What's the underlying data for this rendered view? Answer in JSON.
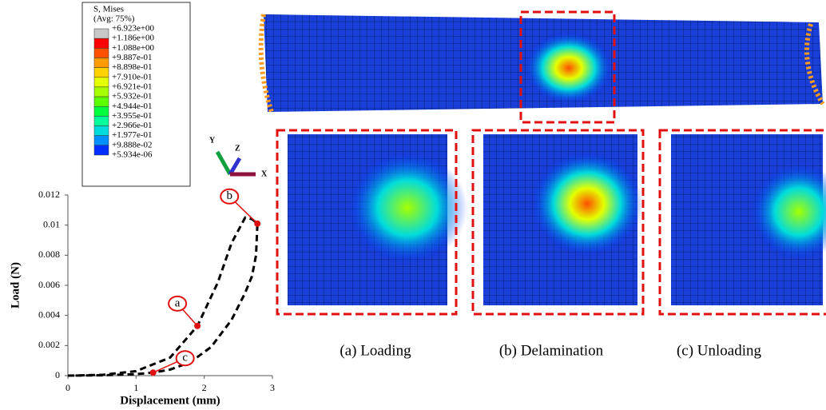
{
  "legend": {
    "title": "S, Mises",
    "subtitle": "(Avg: 75%)",
    "labels": [
      "+6.923e+00",
      "+1.186e+00",
      "+1.088e+00",
      "+9.887e-01",
      "+8.898e-01",
      "+7.910e-01",
      "+6.921e-01",
      "+5.932e-01",
      "+4.944e-01",
      "+3.955e-01",
      "+2.966e-01",
      "+1.977e-01",
      "+9.888e-02",
      "+5.934e-06"
    ],
    "colors": [
      "#c8c8c8",
      "#ff0000",
      "#ff5000",
      "#ff9a00",
      "#ffd200",
      "#e4ff00",
      "#a6ff00",
      "#5cff00",
      "#00ff3c",
      "#00ff9a",
      "#00dcdc",
      "#0090ff",
      "#0030ff"
    ]
  },
  "triad": {
    "y": "Y",
    "z": "Z",
    "x": "X"
  },
  "captions": [
    "(a) Loading",
    "(b) Delamination",
    "(c) Unloading"
  ],
  "chart_data": {
    "type": "line",
    "x_label": "Displacement (mm)",
    "y_label": "Load (N)",
    "xlim": [
      0,
      3
    ],
    "xticks": [
      0,
      1,
      2,
      3
    ],
    "ylim": [
      0,
      0.012
    ],
    "yticks": [
      0,
      0.002,
      0.004,
      0.006,
      0.008,
      0.01,
      0.012
    ],
    "series": [
      {
        "color": "#000000",
        "x": [
          0,
          0.5,
          1,
          1.5,
          1.9,
          2.2,
          2.4,
          2.6,
          2.7,
          2.78,
          2.76,
          2.7,
          2.6,
          2.4,
          2.1,
          1.8,
          1.5,
          1.25,
          1,
          0.5,
          0
        ],
        "values": [
          0,
          5e-05,
          0.0003,
          0.0012,
          0.0033,
          0.0062,
          0.0088,
          0.0105,
          0.0104,
          0.0101,
          0.008,
          0.0066,
          0.0055,
          0.0037,
          0.0019,
          0.0009,
          0.0004,
          0.0002,
          0.0001,
          2e-05,
          0
        ]
      }
    ],
    "annotations": [
      {
        "label": "a",
        "x": 1.9,
        "y": 0.0033
      },
      {
        "label": "b",
        "x": 2.78,
        "y": 0.0101
      },
      {
        "label": "c",
        "x": 1.25,
        "y": 0.0002
      }
    ]
  }
}
